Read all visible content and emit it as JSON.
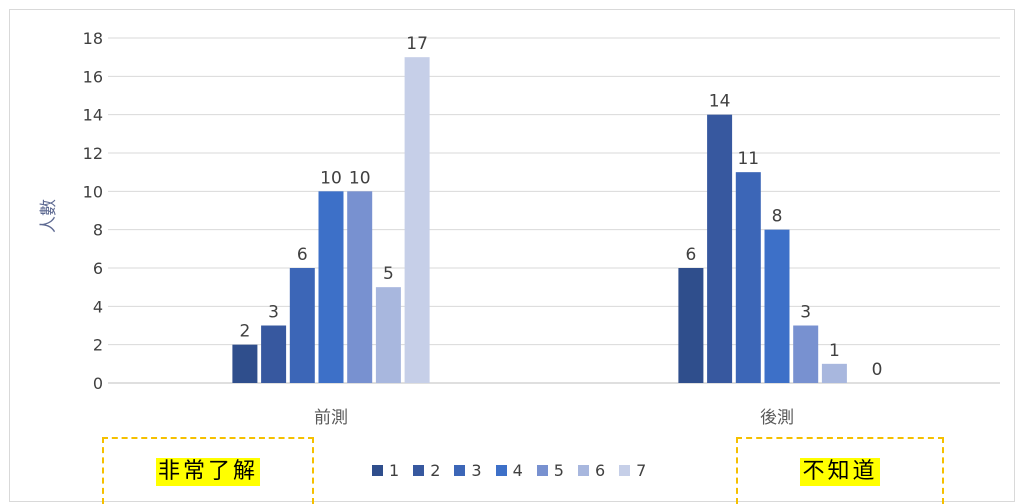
{
  "chart_data": {
    "type": "bar",
    "categories": [
      "前測",
      "後測"
    ],
    "series": [
      {
        "name": "1",
        "values": [
          2,
          6
        ]
      },
      {
        "name": "2",
        "values": [
          3,
          14
        ]
      },
      {
        "name": "3",
        "values": [
          6,
          11
        ]
      },
      {
        "name": "4",
        "values": [
          10,
          8
        ]
      },
      {
        "name": "5",
        "values": [
          10,
          3
        ]
      },
      {
        "name": "6",
        "values": [
          5,
          1
        ]
      },
      {
        "name": "7",
        "values": [
          17,
          0
        ]
      }
    ],
    "colors": [
      "#2f4e8c",
      "#37589f",
      "#3c66b7",
      "#3d70c8",
      "#7891d0",
      "#a8b7de",
      "#c6cfe8"
    ],
    "title": "",
    "xlabel": "",
    "ylabel": "人數",
    "ylim": [
      0,
      18
    ],
    "yticks": [
      0,
      2,
      4,
      6,
      8,
      10,
      12,
      14,
      16,
      18
    ],
    "grid": true,
    "legend_position": "bottom"
  },
  "annotations": {
    "left_label": "非常了解",
    "right_label": "不知道",
    "highlight_color": "#ffff00",
    "border_color": "#f5c000"
  }
}
